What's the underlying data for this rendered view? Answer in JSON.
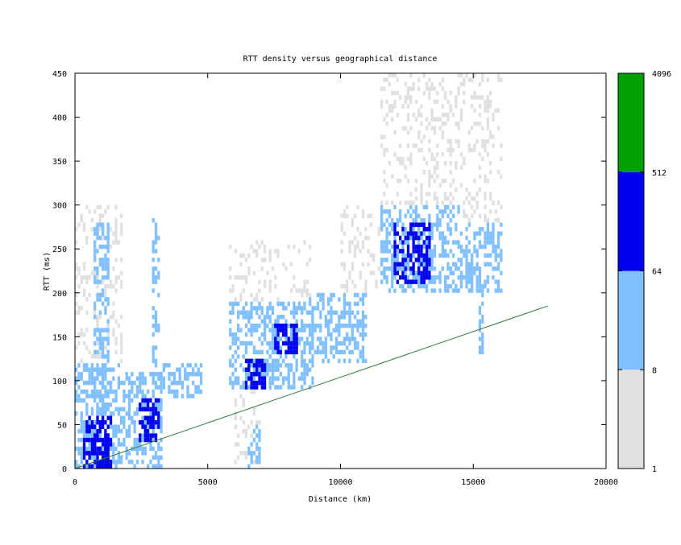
{
  "chart_data": {
    "type": "heatmap",
    "title": "RTT density versus geographical distance",
    "xlabel": "Distance (km)",
    "ylabel": "RTT (ms)",
    "xlim": [
      0,
      20000
    ],
    "ylim": [
      0,
      450
    ],
    "x_ticks": [
      0,
      5000,
      10000,
      15000,
      20000
    ],
    "y_ticks": [
      0,
      50,
      100,
      150,
      200,
      250,
      300,
      350,
      400,
      450
    ],
    "colorbar": {
      "scale": "log2",
      "range": [
        1,
        4096
      ],
      "tick_labels": [
        "1",
        "8",
        "64",
        "512",
        "4096"
      ],
      "bins": [
        {
          "from": 1,
          "to": 8,
          "color": "#e0e0e0"
        },
        {
          "from": 8,
          "to": 64,
          "color": "#80c0ff"
        },
        {
          "from": 64,
          "to": 512,
          "color": "#0000f0"
        },
        {
          "from": 512,
          "to": 4096,
          "color": "#00a000"
        }
      ]
    },
    "reference_line": {
      "color": "#2e7d32",
      "points": [
        [
          0,
          0
        ],
        [
          17800,
          185
        ]
      ]
    },
    "density_regions": [
      {
        "x": [
          0,
          1800
        ],
        "y": [
          0,
          120
        ],
        "level": 1
      },
      {
        "x": [
          0,
          1800
        ],
        "y": [
          120,
          300
        ],
        "level": 0
      },
      {
        "x": [
          300,
          1400
        ],
        "y": [
          0,
          60
        ],
        "level": 2
      },
      {
        "x": [
          700,
          1300
        ],
        "y": [
          60,
          280
        ],
        "level": 1
      },
      {
        "x": [
          700,
          1300
        ],
        "y": [
          0,
          40
        ],
        "level": 2
      },
      {
        "x": [
          1800,
          3300
        ],
        "y": [
          0,
          110
        ],
        "level": 1
      },
      {
        "x": [
          2400,
          3200
        ],
        "y": [
          30,
          80
        ],
        "level": 2
      },
      {
        "x": [
          2900,
          3200
        ],
        "y": [
          100,
          290
        ],
        "level": 1
      },
      {
        "x": [
          3200,
          4800
        ],
        "y": [
          80,
          120
        ],
        "level": 1
      },
      {
        "x": [
          5800,
          9000
        ],
        "y": [
          90,
          190
        ],
        "level": 1
      },
      {
        "x": [
          5800,
          9000
        ],
        "y": [
          190,
          260
        ],
        "level": 0
      },
      {
        "x": [
          6400,
          7200
        ],
        "y": [
          90,
          125
        ],
        "level": 2
      },
      {
        "x": [
          7500,
          8400
        ],
        "y": [
          130,
          165
        ],
        "level": 2
      },
      {
        "x": [
          6000,
          7000
        ],
        "y": [
          0,
          90
        ],
        "level": 0
      },
      {
        "x": [
          6500,
          7000
        ],
        "y": [
          0,
          50
        ],
        "level": 1
      },
      {
        "x": [
          8800,
          11000
        ],
        "y": [
          120,
          200
        ],
        "level": 1
      },
      {
        "x": [
          10000,
          11500
        ],
        "y": [
          200,
          300
        ],
        "level": 0
      },
      {
        "x": [
          11500,
          14500
        ],
        "y": [
          200,
          300
        ],
        "level": 1
      },
      {
        "x": [
          11500,
          14500
        ],
        "y": [
          300,
          450
        ],
        "level": 0
      },
      {
        "x": [
          12000,
          13400
        ],
        "y": [
          210,
          280
        ],
        "level": 2
      },
      {
        "x": [
          14500,
          16100
        ],
        "y": [
          200,
          280
        ],
        "level": 1
      },
      {
        "x": [
          14500,
          16100
        ],
        "y": [
          280,
          450
        ],
        "level": 0
      },
      {
        "x": [
          15200,
          15400
        ],
        "y": [
          130,
          200
        ],
        "level": 1
      }
    ]
  }
}
